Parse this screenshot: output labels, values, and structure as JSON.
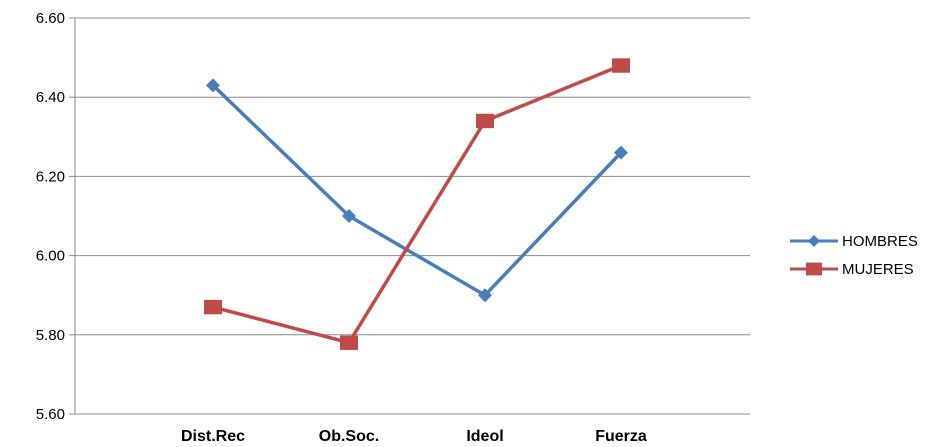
{
  "chart_data": {
    "type": "line",
    "categories": [
      "Dist.Rec",
      "Ob.Soc.",
      "Ideol",
      "Fuerza"
    ],
    "series": [
      {
        "name": "HOMBRES",
        "values": [
          6.43,
          6.1,
          5.9,
          6.26
        ],
        "color": "#4A7EBB",
        "marker": "diamond"
      },
      {
        "name": "MUJERES",
        "values": [
          5.87,
          5.78,
          6.34,
          6.48
        ],
        "color": "#BE4B48",
        "marker": "square"
      }
    ],
    "ylim": [
      5.6,
      6.6
    ],
    "yticks": [
      "5.60",
      "5.80",
      "6.00",
      "6.20",
      "6.40",
      "6.60"
    ],
    "grid": true,
    "legend": "right"
  }
}
